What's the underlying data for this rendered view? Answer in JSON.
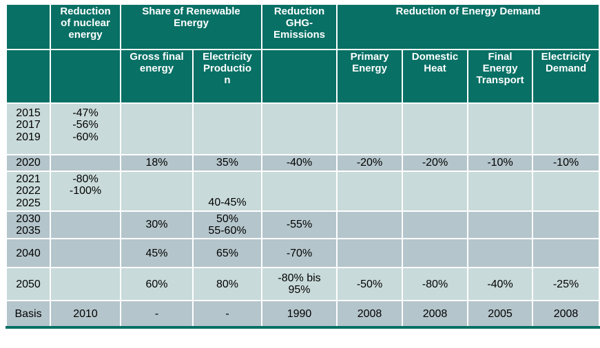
{
  "colors": {
    "header_bg": "#087065",
    "row_light": "#C8DAD9",
    "row_dark": "#B4C5CB",
    "highlight_yellow": "#DCDC0F",
    "grid": "#FFFFFF",
    "header_text": "#FFFFFF",
    "body_text": "#000000"
  },
  "header": {
    "group_row": [
      {
        "label": "",
        "span": 1
      },
      {
        "label": "Reduction\nof nuclear\nenergy",
        "span": 1
      },
      {
        "label": "Share of Renewable\nEnergy",
        "span": 2
      },
      {
        "label": "Reduction\nGHG-\nEmissions",
        "span": 1
      },
      {
        "label": "Reduction of Energy Demand",
        "span": 4
      }
    ],
    "sub_row": [
      "",
      "",
      "Gross final\nenergy",
      "Electricity\nProductio\nn",
      "",
      "Primary\nEnergy",
      "Domestic\nHeat",
      "Final\nEnergy\nTransport",
      "Electricity\nDemand"
    ]
  },
  "rows": [
    {
      "shade": "light",
      "cells": [
        "2015\n2017\n2019",
        "-47%\n-56%\n-60%",
        "",
        "",
        "",
        "",
        "",
        "",
        ""
      ]
    },
    {
      "shade": "dark",
      "cells": [
        "2020",
        "",
        "18%",
        "35%",
        "-40%",
        "-20%",
        "-20%",
        "-10%",
        "-10%"
      ]
    },
    {
      "shade": "light",
      "cells": [
        "2021\n2022\n2025",
        "-80%\n-100%",
        "",
        "40-45%",
        "",
        "",
        "",
        "",
        ""
      ]
    },
    {
      "shade": "dark",
      "cells": [
        "2030\n2035",
        "",
        "30%",
        "50%\n55-60%",
        "-55%",
        "",
        "",
        "",
        ""
      ]
    },
    {
      "shade": "dark",
      "cells": [
        "2040",
        "",
        "45%",
        "65%",
        "-70%",
        "",
        "",
        "",
        ""
      ]
    },
    {
      "shade": "light",
      "cells": [
        "2050",
        "",
        "60%",
        "80%",
        "-80% bis\n95%",
        "-50%",
        "-80%",
        "-40%",
        "-25%"
      ]
    },
    {
      "shade": "dark",
      "cells": [
        "Basis",
        "2010",
        "-",
        "-",
        "1990",
        "2008",
        "2008",
        "2005",
        "2008"
      ]
    }
  ]
}
